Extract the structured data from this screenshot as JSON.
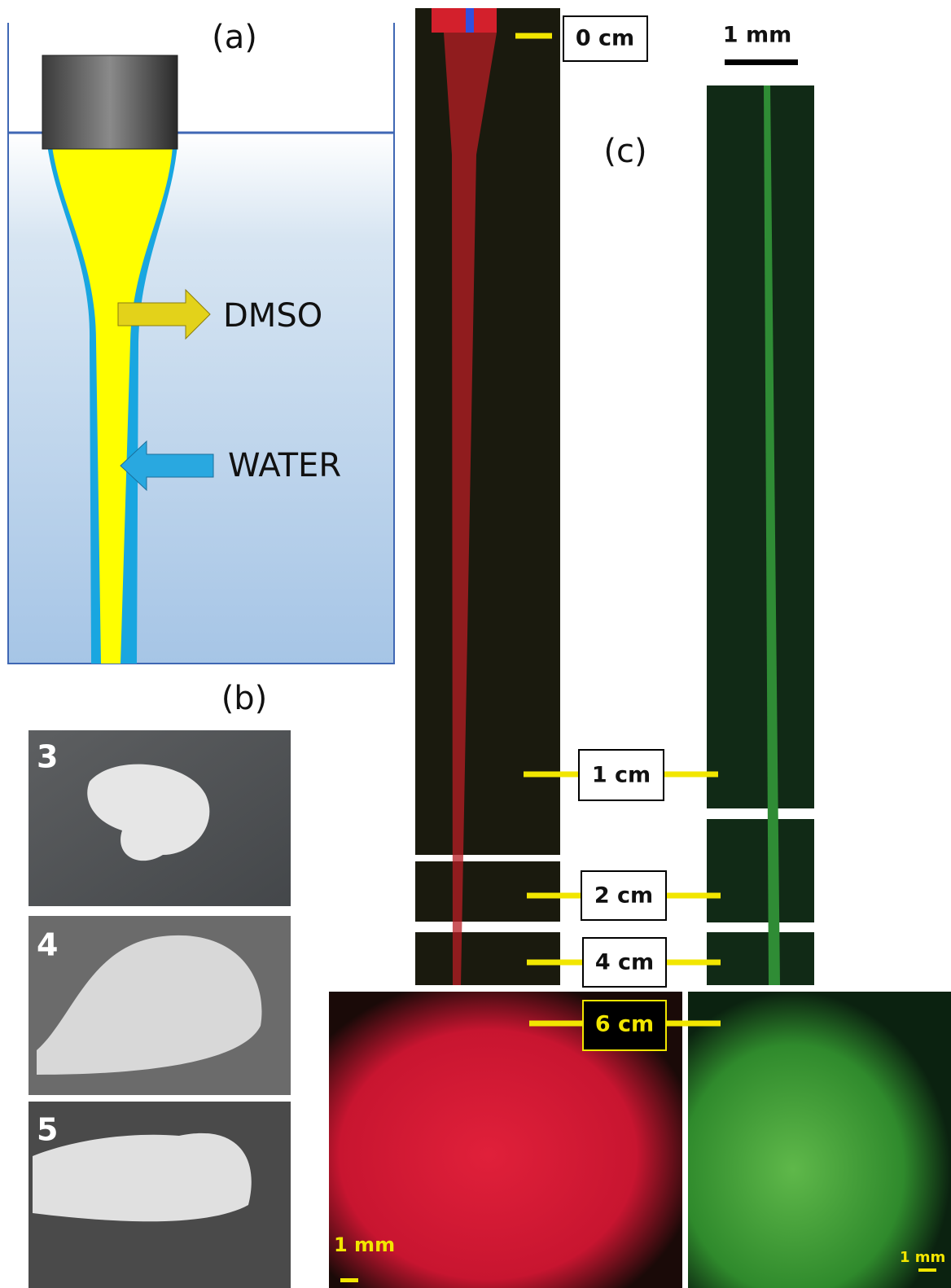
{
  "panel_a": {
    "label": "(a)",
    "arrows": [
      "DMSO",
      "WATER"
    ]
  },
  "panel_b": {
    "label": "(b)",
    "photos": [
      "3",
      "4",
      "5"
    ]
  },
  "panel_c": {
    "label": "(c)",
    "scale_bar": "1 mm",
    "distance_markers": [
      "0 cm",
      "1 cm",
      "2 cm",
      "4 cm",
      "6 cm"
    ],
    "bottom_scale_bars": [
      "1 mm",
      "1 mm"
    ]
  }
}
